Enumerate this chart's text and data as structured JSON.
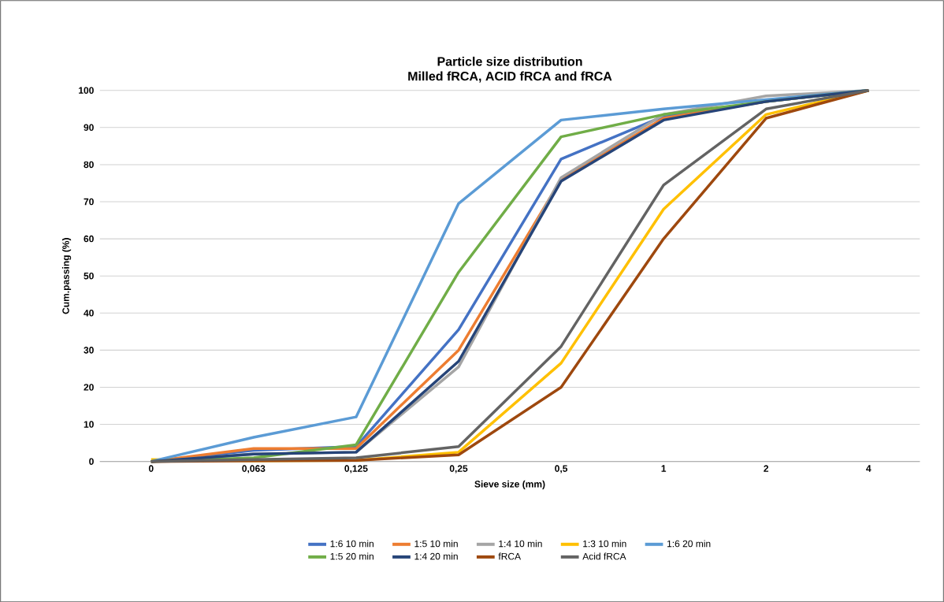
{
  "chart_data": {
    "type": "line",
    "title": "Particle size distribution\nMilled fRCA, ACID fRCA and fRCA",
    "xlabel": "Sieve size (mm)",
    "ylabel": "Cum.passing (%)",
    "categories": [
      "0",
      "0,063",
      "0,125",
      "0,25",
      "0,5",
      "1",
      "2",
      "4"
    ],
    "ylim": [
      0,
      100
    ],
    "yticks": [
      0,
      10,
      20,
      30,
      40,
      50,
      60,
      70,
      80,
      90,
      100
    ],
    "grid": "y",
    "legend": "bottom",
    "marker": "none",
    "line_style": "solid",
    "series": [
      {
        "name": "1:6 10 min",
        "color": "#4472c4",
        "values": [
          0,
          3,
          4,
          35.5,
          81.5,
          93,
          97,
          100
        ]
      },
      {
        "name": "1:5 10 min",
        "color": "#ed7d31",
        "values": [
          0,
          3.5,
          3.5,
          30,
          76,
          92.5,
          97,
          100
        ]
      },
      {
        "name": "1:4 10 min",
        "color": "#a5a5a5",
        "values": [
          0,
          2,
          2.5,
          25.5,
          76.5,
          93.5,
          98.5,
          100
        ]
      },
      {
        "name": "1:3 10 min",
        "color": "#ffc000",
        "values": [
          0.5,
          0.2,
          0.3,
          2.5,
          26.5,
          68,
          93.5,
          100
        ]
      },
      {
        "name": "1:6 20 min",
        "color": "#5b9bd5",
        "values": [
          0,
          6.5,
          12,
          69.5,
          92,
          95,
          97.5,
          100
        ]
      },
      {
        "name": "1:5 20 min",
        "color": "#70ad47",
        "values": [
          0,
          1,
          4.5,
          51,
          87.5,
          93.5,
          97,
          100
        ]
      },
      {
        "name": "1:4 20 min",
        "color": "#264478",
        "values": [
          0,
          2,
          2.5,
          27,
          75.5,
          92,
          97,
          100
        ]
      },
      {
        "name": "fRCA",
        "color": "#9e480e",
        "values": [
          0,
          0.2,
          0.3,
          1.8,
          20,
          60,
          92.5,
          100
        ]
      },
      {
        "name": "Acid fRCA",
        "color": "#636363",
        "values": [
          0,
          0.5,
          1,
          4,
          31,
          74.5,
          95,
          100
        ]
      }
    ]
  }
}
